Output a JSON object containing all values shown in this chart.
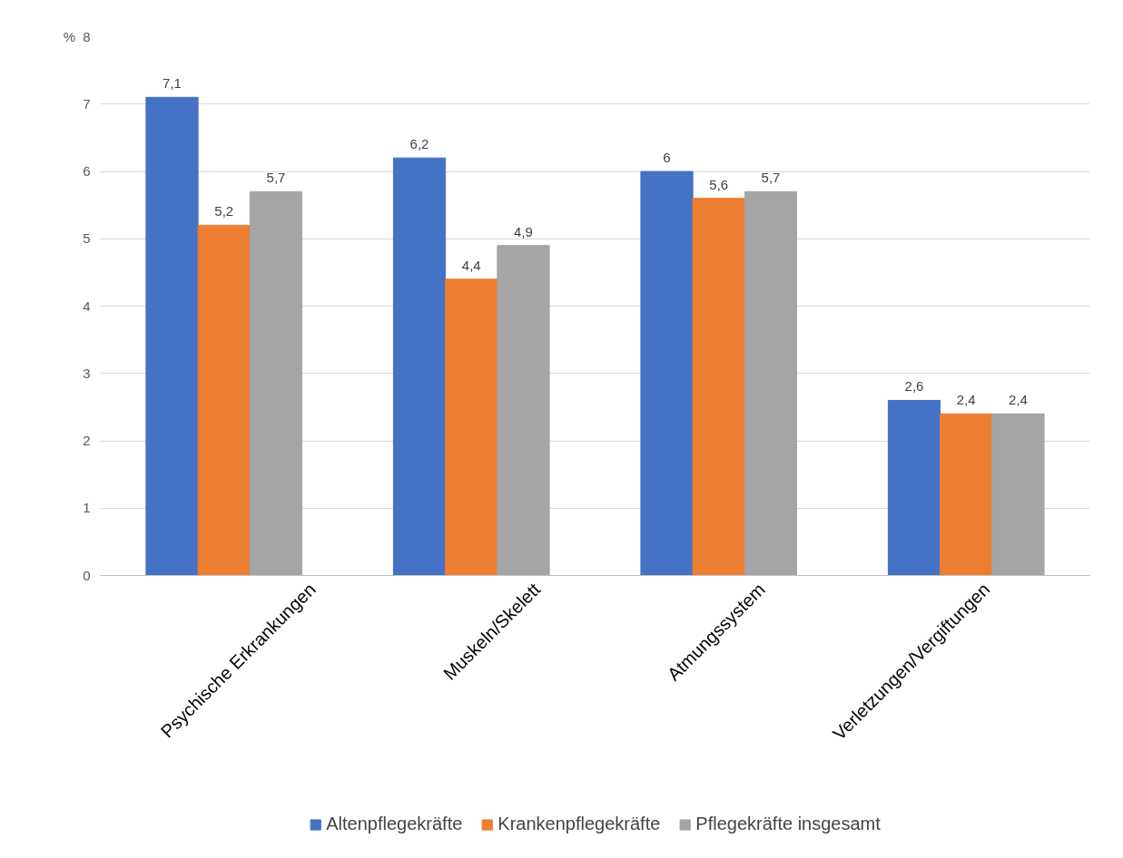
{
  "chart_data": {
    "type": "bar",
    "ylabel": "%",
    "categories": [
      "Psychische Erkrankungen",
      "Muskeln/Skelett",
      "Atmungssystem",
      "Verletzungen/Vergiftungen"
    ],
    "series": [
      {
        "name": "Altenpflegekräfte",
        "color": "#4472c4",
        "values": [
          7.1,
          6.2,
          6,
          2.6
        ],
        "value_labels": [
          "7,1",
          "6,2",
          "6",
          "2,6"
        ]
      },
      {
        "name": "Krankenpflegekräfte",
        "color": "#ed7d31",
        "values": [
          5.2,
          4.4,
          5.6,
          2.4
        ],
        "value_labels": [
          "5,2",
          "4,4",
          "5,6",
          "2,4"
        ]
      },
      {
        "name": "Pflegekräfte insgesamt",
        "color": "#a5a5a5",
        "values": [
          5.7,
          4.9,
          5.7,
          2.4
        ],
        "value_labels": [
          "5,7",
          "4,9",
          "5,7",
          "2,4"
        ]
      }
    ],
    "ylim": [
      0,
      8
    ],
    "yticks": [
      0,
      1,
      2,
      3,
      4,
      5,
      6,
      7,
      8
    ],
    "grid": "y",
    "legend": "bottom"
  }
}
